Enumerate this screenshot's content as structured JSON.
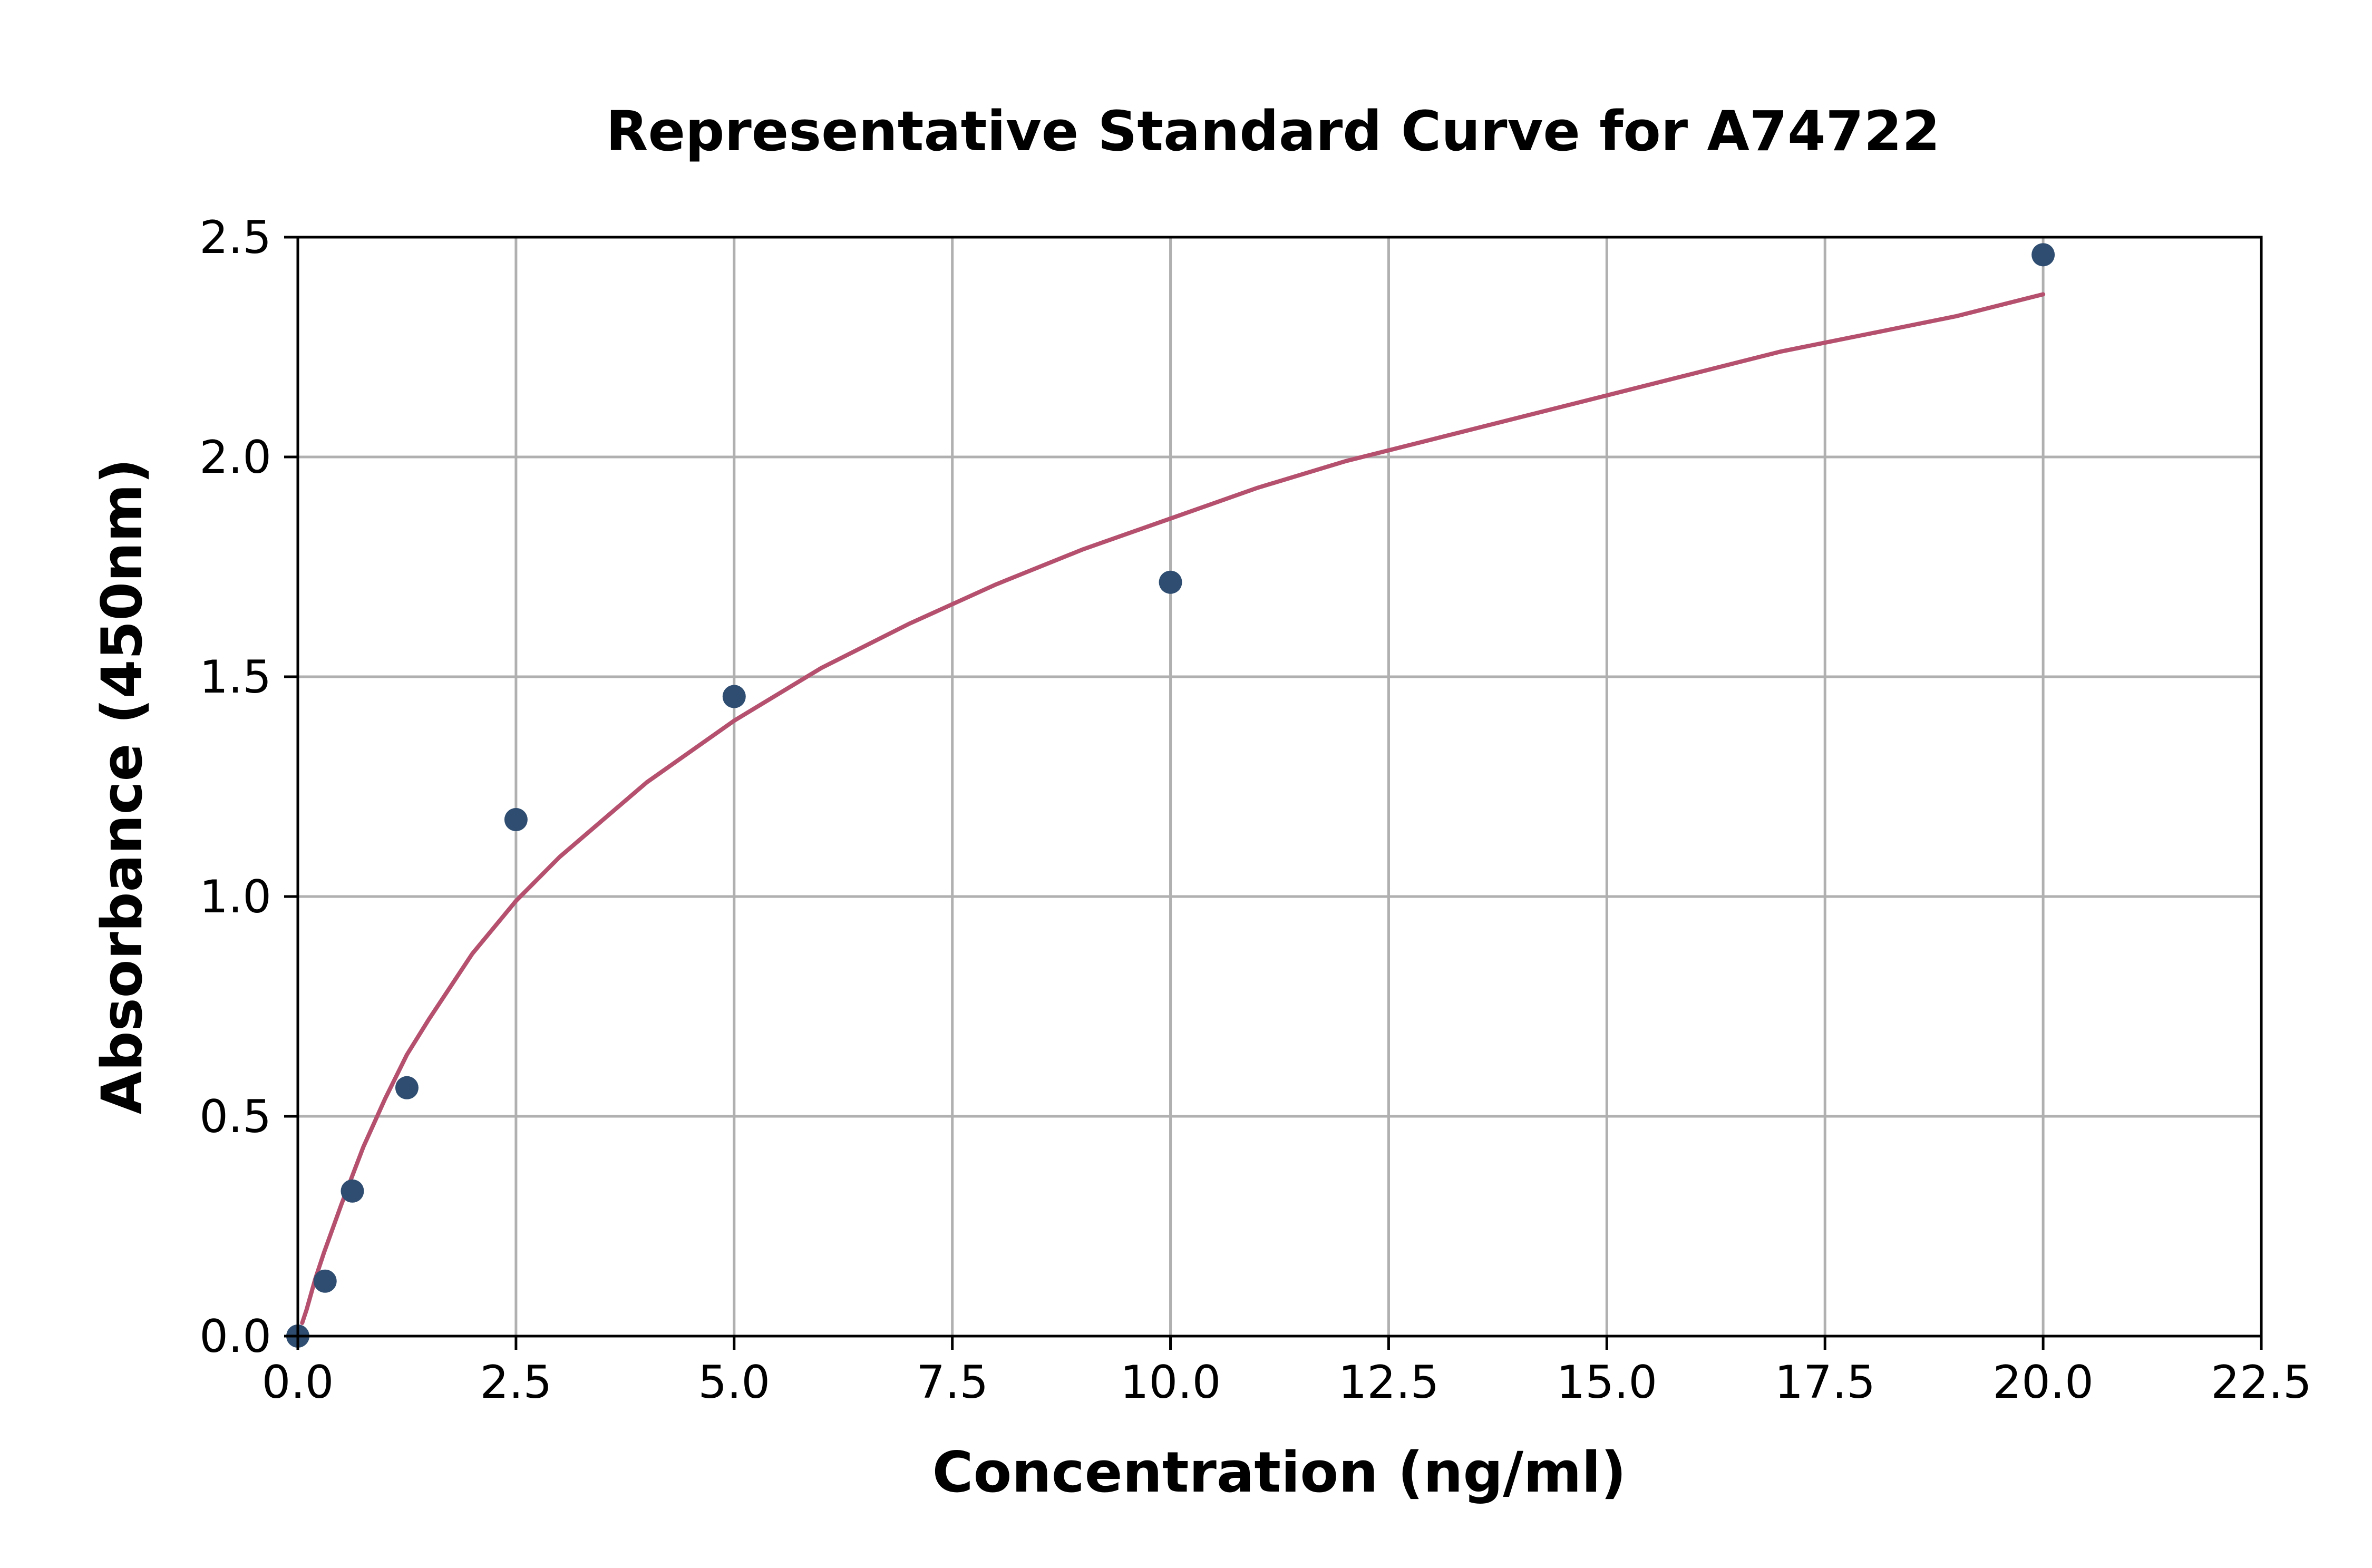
{
  "chart_data": {
    "type": "scatter",
    "title": "Representative Standard Curve for A74722",
    "xlabel": "Concentration (ng/ml)",
    "ylabel": "Absorbance (450nm)",
    "xlim": [
      0,
      22.5
    ],
    "ylim": [
      0,
      2.5
    ],
    "x_ticks": [
      0,
      2.5,
      5,
      7.5,
      10,
      12.5,
      15,
      17.5,
      20,
      22.5
    ],
    "x_tick_labels": [
      "0.0",
      "2.5",
      "5.0",
      "7.5",
      "10.0",
      "12.5",
      "15.0",
      "17.5",
      "20.0",
      "22.5"
    ],
    "y_ticks": [
      0,
      0.5,
      1,
      1.5,
      2,
      2.5
    ],
    "y_tick_labels": [
      "0.0",
      "0.5",
      "1.0",
      "1.5",
      "2.0",
      "2.5"
    ],
    "grid": true,
    "points": {
      "color": "#2e4d70",
      "x": [
        0.0,
        0.3125,
        0.625,
        1.25,
        2.5,
        5.0,
        10.0,
        20.0
      ],
      "y": [
        0.0,
        0.125,
        0.33,
        0.565,
        1.175,
        1.455,
        1.715,
        2.46
      ]
    },
    "fit_curve": {
      "color": "#b5506f",
      "x": [
        0.05,
        0.1,
        0.2,
        0.3,
        0.5,
        0.75,
        1.0,
        1.25,
        1.5,
        2.0,
        2.5,
        3.0,
        4.0,
        5.0,
        6.0,
        7.0,
        8.0,
        9.0,
        10.0,
        11.0,
        12.0,
        13.0,
        14.0,
        15.0,
        16.0,
        17.0,
        18.0,
        19.0,
        20.0
      ],
      "y": [
        0.03,
        0.06,
        0.13,
        0.19,
        0.3,
        0.43,
        0.54,
        0.64,
        0.72,
        0.87,
        0.99,
        1.09,
        1.26,
        1.4,
        1.52,
        1.62,
        1.71,
        1.79,
        1.86,
        1.93,
        1.99,
        2.04,
        2.09,
        2.14,
        2.19,
        2.24,
        2.28,
        2.32,
        2.37
      ]
    }
  }
}
